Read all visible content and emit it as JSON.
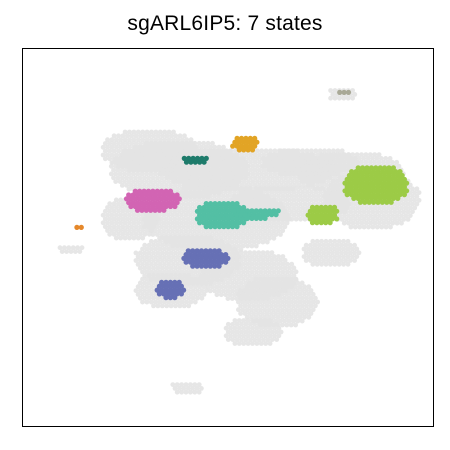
{
  "chart_data": {
    "type": "scatter",
    "title": "sgARL6IP5: 7 states",
    "xlabel": "",
    "ylabel": "",
    "grid": false,
    "axes_ticks": false,
    "xlim": [
      0,
      100
    ],
    "ylim": [
      0,
      100
    ],
    "background_points_color": "#e3e3e3",
    "background": [
      {
        "cx": 31,
        "cy": 73,
        "rx": 12,
        "ry": 6
      },
      {
        "cx": 38,
        "cy": 68,
        "rx": 17,
        "ry": 8
      },
      {
        "cx": 55,
        "cy": 68,
        "rx": 22,
        "ry": 6
      },
      {
        "cx": 70,
        "cy": 70,
        "rx": 12,
        "ry": 4
      },
      {
        "cx": 80,
        "cy": 67,
        "rx": 13,
        "ry": 6
      },
      {
        "cx": 85,
        "cy": 60,
        "rx": 12,
        "ry": 8
      },
      {
        "cx": 65,
        "cy": 59,
        "rx": 15,
        "ry": 5
      },
      {
        "cx": 47,
        "cy": 55,
        "rx": 18,
        "ry": 9
      },
      {
        "cx": 26,
        "cy": 55,
        "rx": 7,
        "ry": 6
      },
      {
        "cx": 40,
        "cy": 44,
        "rx": 13,
        "ry": 7
      },
      {
        "cx": 55,
        "cy": 40,
        "rx": 12,
        "ry": 7
      },
      {
        "cx": 62,
        "cy": 33,
        "rx": 10,
        "ry": 7
      },
      {
        "cx": 36,
        "cy": 36,
        "rx": 9,
        "ry": 5
      },
      {
        "cx": 56,
        "cy": 25,
        "rx": 7,
        "ry": 4
      },
      {
        "cx": 75,
        "cy": 46,
        "rx": 7,
        "ry": 4
      },
      {
        "cx": 12,
        "cy": 47,
        "rx": 3.5,
        "ry": 1.3
      },
      {
        "cx": 78,
        "cy": 88,
        "rx": 3.5,
        "ry": 2
      },
      {
        "cx": 40,
        "cy": 10,
        "rx": 4,
        "ry": 2
      }
    ],
    "series": [
      {
        "color": "#9ccb46",
        "cx": 86,
        "cy": 64,
        "rx": 8,
        "ry": 5.5
      },
      {
        "color": "#9ccb46",
        "cx": 73,
        "cy": 56,
        "rx": 4,
        "ry": 3
      },
      {
        "color": "#53bfa4",
        "cx": 48.5,
        "cy": 56,
        "rx": 6.5,
        "ry": 4
      },
      {
        "color": "#53bfa4",
        "cx": 57,
        "cy": 56.5,
        "rx": 6,
        "ry": 1.6
      },
      {
        "color": "#d264b3",
        "cx": 31.5,
        "cy": 60,
        "rx": 6.8,
        "ry": 3.3
      },
      {
        "color": "#6670b5",
        "cx": 44.5,
        "cy": 44.5,
        "rx": 5.8,
        "ry": 3
      },
      {
        "color": "#6670b5",
        "cx": 36,
        "cy": 36.5,
        "rx": 3.8,
        "ry": 2.6
      },
      {
        "color": "#e2a425",
        "cx": 54,
        "cy": 75,
        "rx": 3.4,
        "ry": 2.3
      },
      {
        "color": "#1e7b6b",
        "cx": 42,
        "cy": 70.5,
        "rx": 3.2,
        "ry": 1.5
      },
      {
        "color": "#a9a997",
        "cx": 78.5,
        "cy": 88.5,
        "rx": 1.8,
        "ry": 1
      },
      {
        "color": "#e5882b",
        "cx": 13.5,
        "cy": 53,
        "rx": 0.9,
        "ry": 0.7
      }
    ]
  }
}
